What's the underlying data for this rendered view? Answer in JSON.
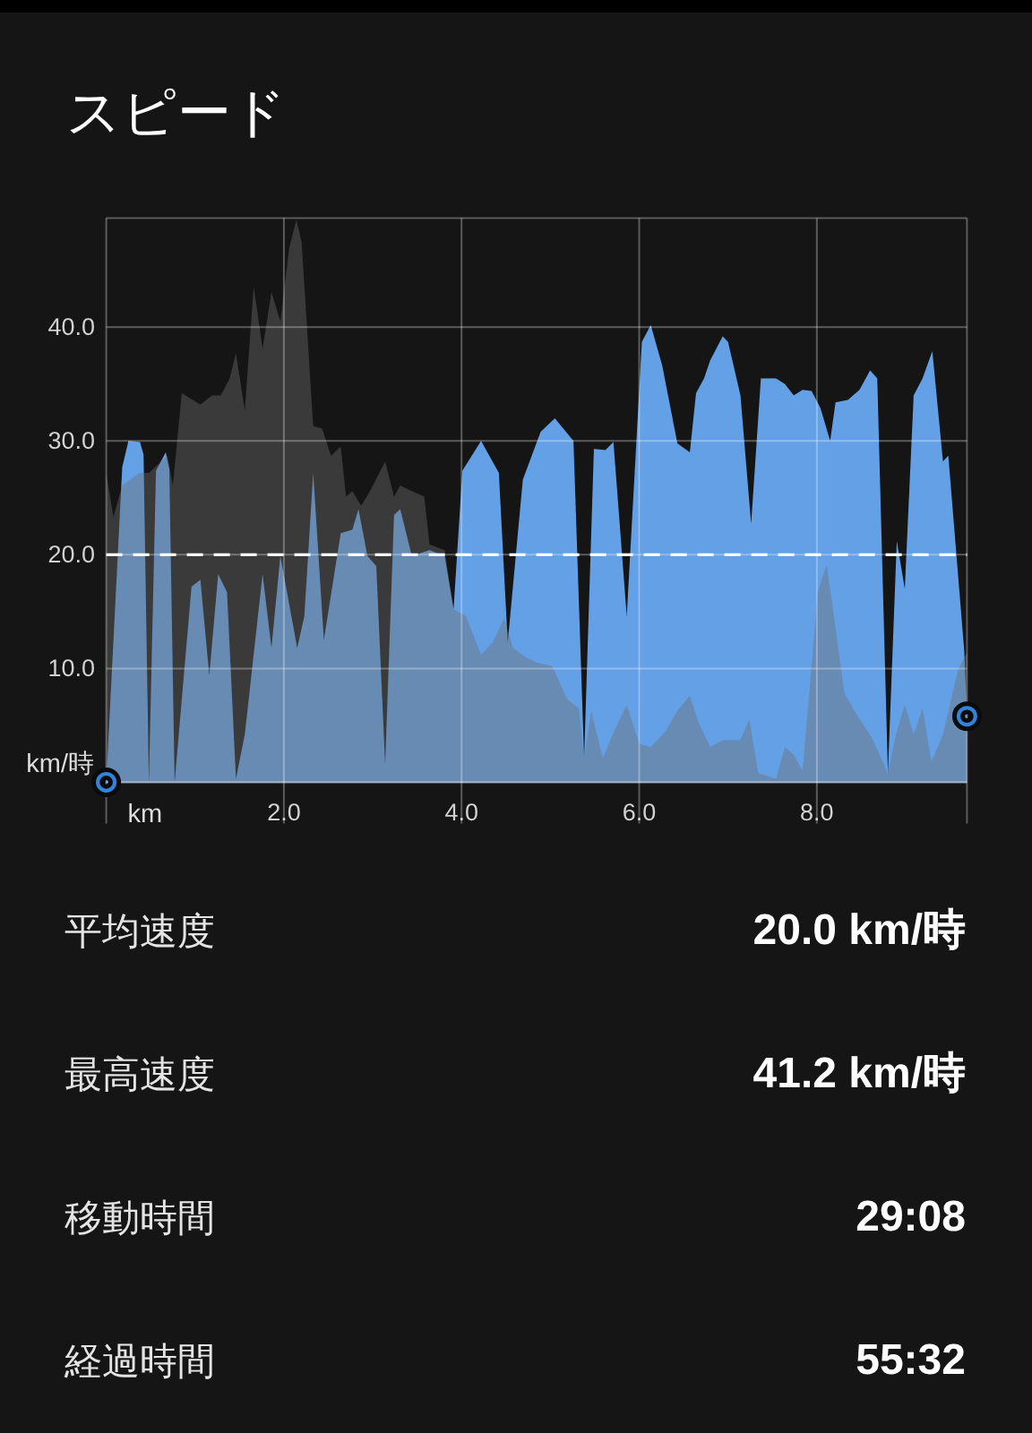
{
  "chart_data": [
    {
      "type": "area",
      "title": "スピード",
      "xlabel": "km",
      "ylabel": "km/時",
      "xlim": [
        0,
        9.69
      ],
      "ylim": [
        0,
        49.6
      ],
      "xticks": [
        {
          "value": 0,
          "label": null
        },
        {
          "value": 2,
          "label": "2.0"
        },
        {
          "value": 4,
          "label": "4.0"
        },
        {
          "value": 6,
          "label": "6.0"
        },
        {
          "value": 8,
          "label": "8.0"
        },
        {
          "value": 9.69,
          "label": null
        }
      ],
      "yticks": [
        {
          "value": 0,
          "label": null
        },
        {
          "value": 10,
          "label": "10.0"
        },
        {
          "value": 20,
          "label": "20.0"
        },
        {
          "value": 30,
          "label": "30.0"
        },
        {
          "value": 40,
          "label": "40.0"
        }
      ],
      "grid": true,
      "ref_lines": [
        {
          "axis": "y",
          "value": 20,
          "color": "#ffffff",
          "line_style": "dashed"
        }
      ],
      "series": [
        {
          "color": "#64a0e6",
          "x": [
            0,
            0.18,
            0.25,
            0.38,
            0.42,
            0.48,
            0.56,
            0.67,
            0.71,
            0.77,
            0.96,
            1.06,
            1.16,
            1.26,
            1.36,
            1.46,
            1.56,
            1.76,
            1.86,
            1.96,
            2.15,
            2.23,
            2.33,
            2.45,
            2.64,
            2.77,
            2.84,
            2.94,
            3.04,
            3.14,
            3.24,
            3.31,
            3.44,
            3.64,
            3.81,
            3.91,
            4.01,
            4.22,
            4.42,
            4.52,
            4.69,
            4.89,
            5.05,
            5.26,
            5.38,
            5.49,
            5.62,
            5.71,
            5.86,
            6.03,
            6.13,
            6.26,
            6.43,
            6.57,
            6.64,
            6.73,
            6.8,
            6.94,
            7.0,
            7.14,
            7.26,
            7.37,
            7.54,
            7.64,
            7.74,
            7.84,
            7.94,
            8.04,
            8.15,
            8.21,
            8.35,
            8.48,
            8.6,
            8.68,
            8.8,
            8.9,
            8.99,
            9.09,
            9.19,
            9.3,
            9.42,
            9.48,
            9.66,
            9.69
          ],
          "values": [
            0,
            27.7,
            30.0,
            29.9,
            28.8,
            0,
            27.4,
            29.0,
            27.5,
            0,
            17.2,
            17.8,
            9.4,
            18.3,
            16.7,
            0.3,
            4.2,
            18.3,
            11.8,
            19.9,
            11.8,
            14.6,
            27.2,
            12.5,
            21.9,
            22.2,
            24.0,
            19.9,
            19.0,
            1.6,
            23.5,
            24.0,
            19.9,
            20.4,
            19.9,
            15.2,
            27.4,
            30.0,
            27.2,
            12.3,
            26.6,
            30.8,
            32.0,
            30.0,
            2.1,
            29.3,
            29.2,
            29.9,
            14.6,
            38.7,
            40.2,
            36.6,
            29.8,
            29.0,
            34.2,
            35.5,
            37.1,
            39.2,
            38.7,
            34.0,
            22.7,
            35.5,
            35.5,
            35.0,
            34.0,
            34.5,
            34.4,
            32.9,
            30.0,
            33.4,
            33.6,
            34.5,
            36.2,
            35.5,
            0.8,
            21.2,
            17.0,
            34.0,
            35.5,
            37.9,
            28.2,
            28.7,
            11.5,
            5.8
          ]
        },
        {
          "color": "#6e6e6e",
          "x": [
            0,
            0.08,
            0.18,
            0.38,
            0.48,
            0.69,
            0.75,
            0.85,
            1.06,
            1.19,
            1.29,
            1.39,
            1.46,
            1.56,
            1.66,
            1.76,
            1.86,
            1.96,
            2.06,
            2.14,
            2.2,
            2.33,
            2.43,
            2.53,
            2.64,
            2.7,
            2.77,
            2.87,
            2.97,
            3.14,
            3.24,
            3.31,
            3.44,
            3.58,
            3.64,
            3.81,
            3.91,
            4.05,
            4.22,
            4.35,
            4.48,
            4.58,
            4.72,
            4.85,
            5.02,
            5.19,
            5.32,
            5.38,
            5.46,
            5.59,
            5.73,
            5.86,
            6.0,
            6.13,
            6.3,
            6.43,
            6.57,
            6.67,
            6.8,
            6.94,
            7.14,
            7.24,
            7.34,
            7.54,
            7.64,
            7.74,
            7.84,
            8.01,
            8.11,
            8.21,
            8.31,
            8.42,
            8.62,
            8.8,
            8.89,
            8.99,
            9.09,
            9.19,
            9.29,
            9.42,
            9.59,
            9.69
          ],
          "values": [
            27.2,
            23.3,
            26.1,
            27.2,
            27.2,
            28.7,
            26.1,
            34.2,
            33.2,
            34.0,
            34.0,
            35.5,
            37.7,
            32.7,
            43.6,
            38.1,
            43.1,
            40.5,
            47.0,
            49.4,
            47.5,
            31.3,
            31.1,
            28.7,
            29.5,
            25.1,
            25.6,
            24.3,
            25.6,
            28.2,
            25.1,
            26.1,
            25.6,
            25.1,
            20.9,
            20.4,
            15.2,
            14.6,
            11.2,
            12.3,
            14.4,
            11.8,
            11.0,
            10.5,
            10.2,
            7.3,
            6.5,
            2.0,
            6.3,
            2.1,
            4.7,
            6.8,
            3.4,
            3.1,
            4.5,
            6.3,
            7.6,
            5.2,
            3.1,
            3.7,
            3.7,
            5.5,
            0.8,
            0.3,
            3.1,
            2.4,
            1.0,
            16.7,
            19.1,
            13.6,
            7.8,
            6.3,
            3.9,
            0.8,
            4.2,
            6.8,
            4.2,
            6.5,
            1.8,
            4.2,
            9.9,
            11.4
          ]
        },
        {
          "type": "scatter",
          "color": "#2f84dc",
          "marker": "circle",
          "x": [
            0,
            9.69
          ],
          "values": [
            0,
            5.8
          ]
        }
      ]
    },
    {
      "type": "other",
      "annotations": [
        "平均速度",
        "20.0 km/時",
        "最高速度",
        "41.2 km/時",
        "移動時間",
        "29:08",
        "経過時間",
        "55:32"
      ]
    }
  ]
}
